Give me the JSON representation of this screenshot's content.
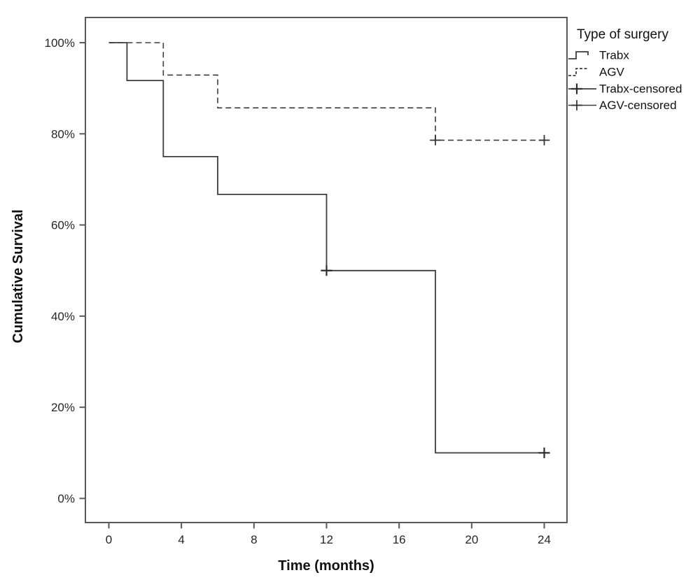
{
  "chart_data": {
    "type": "line",
    "subtype": "kaplan-meier-step",
    "title": "",
    "xlabel": "Time (months)",
    "ylabel": "Cumulative Survival",
    "grid": false,
    "xlim": [
      -1.3,
      25.3
    ],
    "ylim_percent": [
      -5.5,
      105.5
    ],
    "x_ticks": [
      {
        "label": "0",
        "value": 0
      },
      {
        "label": "4",
        "value": 4
      },
      {
        "label": "8",
        "value": 8
      },
      {
        "label": "12",
        "value": 12
      },
      {
        "label": "16",
        "value": 16
      },
      {
        "label": "20",
        "value": 20
      },
      {
        "label": "24",
        "value": 24
      }
    ],
    "y_ticks": [
      {
        "label": "0%",
        "value": 0
      },
      {
        "label": "20%",
        "value": 20
      },
      {
        "label": "40%",
        "value": 40
      },
      {
        "label": "60%",
        "value": 60
      },
      {
        "label": "80%",
        "value": 80
      },
      {
        "label": "100%",
        "value": 100
      }
    ],
    "legend": {
      "title": "Type of surgery",
      "position": "top-right-outside",
      "entries": [
        {
          "label": "Trabx",
          "style": "solid-step"
        },
        {
          "label": "AGV",
          "style": "dashed-step"
        },
        {
          "label": "Trabx-censored",
          "style": "solid-line-plus"
        },
        {
          "label": "AGV-censored",
          "style": "thin-line-plus"
        }
      ]
    },
    "series": [
      {
        "name": "Trabx",
        "line": "solid",
        "points_percent": [
          [
            0,
            100
          ],
          [
            1,
            100
          ],
          [
            1,
            91.7
          ],
          [
            3,
            91.7
          ],
          [
            3,
            75
          ],
          [
            6,
            75
          ],
          [
            6,
            66.7
          ],
          [
            12,
            66.7
          ],
          [
            12,
            50
          ],
          [
            18,
            50
          ],
          [
            18,
            10
          ],
          [
            24,
            10
          ]
        ],
        "censored_percent": [
          [
            12,
            50
          ],
          [
            24,
            10
          ]
        ]
      },
      {
        "name": "AGV",
        "line": "dashed",
        "points_percent": [
          [
            0,
            100
          ],
          [
            3,
            100
          ],
          [
            3,
            92.9
          ],
          [
            6,
            92.9
          ],
          [
            6,
            85.7
          ],
          [
            18,
            85.7
          ],
          [
            18,
            78.6
          ],
          [
            24,
            78.6
          ]
        ],
        "censored_percent": [
          [
            18,
            78.6
          ],
          [
            24,
            78.6
          ]
        ]
      }
    ],
    "colors": {
      "line": "#3d3d3d",
      "frame": "#595959",
      "text": "#111111"
    }
  }
}
